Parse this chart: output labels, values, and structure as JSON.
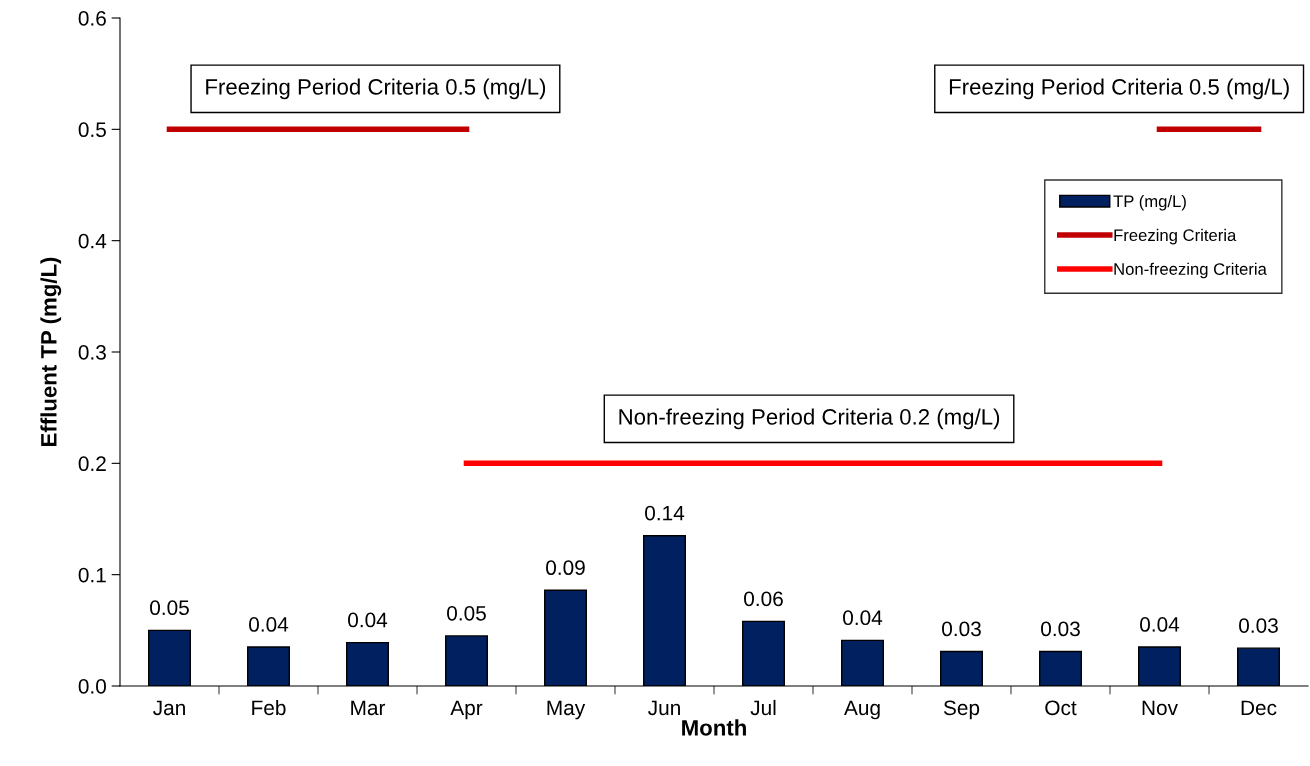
{
  "chart_data": {
    "type": "bar",
    "xlabel": "Month",
    "ylabel": "Effluent TP (mg/L)",
    "categories": [
      "Jan",
      "Feb",
      "Mar",
      "Apr",
      "May",
      "Jun",
      "Jul",
      "Aug",
      "Sep",
      "Oct",
      "Nov",
      "Dec"
    ],
    "series": [
      {
        "name": "TP (mg/L)",
        "color": "#002060",
        "values": [
          0.05,
          0.035,
          0.039,
          0.045,
          0.086,
          0.135,
          0.058,
          0.041,
          0.031,
          0.031,
          0.035,
          0.034
        ],
        "value_labels": [
          "0.05",
          "0.04",
          "0.04",
          "0.05",
          "0.09",
          "0.14",
          "0.06",
          "0.04",
          "0.03",
          "0.03",
          "0.04",
          "0.03"
        ]
      },
      {
        "name": "Freezing Criteria",
        "type": "line",
        "color": "#c00000",
        "values": [
          0.5,
          0.5,
          0.5,
          0.5,
          null,
          null,
          null,
          null,
          null,
          null,
          0.5,
          0.5
        ]
      },
      {
        "name": "Non-freezing Criteria",
        "type": "line",
        "color": "#ff0000",
        "values": [
          null,
          null,
          null,
          0.2,
          0.2,
          0.2,
          0.2,
          0.2,
          0.2,
          0.2,
          0.2,
          null
        ]
      }
    ],
    "ylim": [
      0,
      0.6
    ],
    "yticks": [
      {
        "value": 0,
        "label": "0.0"
      },
      0.1,
      0.2,
      0.3,
      0.4,
      0.5,
      0.6
    ],
    "grid": false,
    "legend": "right",
    "annotations": [
      "Freezing Period Criteria 0.5 (mg/L)",
      "Freezing Period Criteria 0.5 (mg/L)",
      "Non-freezing Period Criteria 0.2 (mg/L)"
    ]
  }
}
